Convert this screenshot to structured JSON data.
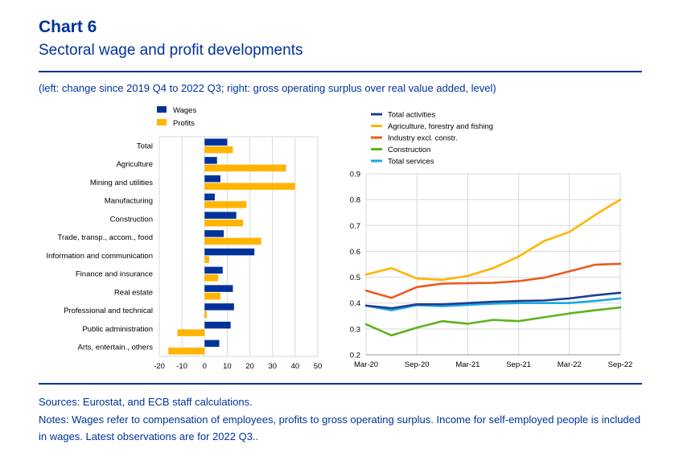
{
  "header": {
    "title": "Chart 6",
    "subtitle": "Sectoral wage and profit developments",
    "note": "(left: change since 2019 Q4 to 2022 Q3; right: gross operating surplus over real value added, level)"
  },
  "footer": {
    "sources": "Sources: Eurostat, and ECB staff calculations.",
    "notes": "Notes: Wages refer to compensation of employees, profits to gross operating surplus. Income for self-employed people is included in wages. Latest observations are for 2022 Q3.."
  },
  "colors": {
    "brand": "#003399",
    "wages": "#003399",
    "profits": "#FFB400",
    "total_activities": "#1F3F8F",
    "agriculture": "#FFB400",
    "industry": "#EC5A1F",
    "construction": "#5DB31F",
    "total_services": "#1CA8E0"
  },
  "chart_data": [
    {
      "type": "bar",
      "orientation": "horizontal",
      "categories": [
        "Total",
        "Agriculture",
        "Mining and utilities",
        "Manufacturing",
        "Construction",
        "Trade, transp., accom., food",
        "Information and communication",
        "Finance and insurance",
        "Real estate",
        "Professional and technical",
        "Public administration",
        "Arts, entertain., others"
      ],
      "series": [
        {
          "name": "Wages",
          "values": [
            10,
            5.5,
            7,
            4.5,
            14,
            8.5,
            22,
            8,
            12.5,
            13,
            11.5,
            6.5
          ]
        },
        {
          "name": "Profits",
          "values": [
            12.5,
            36,
            40,
            18.5,
            17,
            25,
            2,
            6,
            7,
            1,
            -12,
            -16
          ]
        }
      ],
      "xlim": [
        -20,
        50
      ],
      "xticks": [
        -20,
        -10,
        0,
        10,
        20,
        30,
        40,
        50
      ],
      "legend": "top-left",
      "grid": true
    },
    {
      "type": "line",
      "x": [
        "Mar-20",
        "Jun-20",
        "Sep-20",
        "Dec-20",
        "Mar-21",
        "Jun-21",
        "Sep-21",
        "Dec-21",
        "Mar-22",
        "Jun-22",
        "Sep-22"
      ],
      "xticks": [
        "Mar-20",
        "Sep-20",
        "Mar-21",
        "Sep-21",
        "Mar-22",
        "Sep-22"
      ],
      "series": [
        {
          "name": "Total activities",
          "values": [
            0.39,
            0.38,
            0.395,
            0.395,
            0.4,
            0.405,
            0.408,
            0.41,
            0.418,
            0.43,
            0.44
          ]
        },
        {
          "name": "Agriculture, forestry and fishing",
          "values": [
            0.51,
            0.535,
            0.495,
            0.49,
            0.505,
            0.535,
            0.58,
            0.64,
            0.675,
            0.74,
            0.8
          ]
        },
        {
          "name": "Industry excl. constr.",
          "values": [
            0.448,
            0.42,
            0.462,
            0.475,
            0.477,
            0.478,
            0.485,
            0.498,
            0.523,
            0.548,
            0.552
          ]
        },
        {
          "name": "Construction",
          "values": [
            0.318,
            0.275,
            0.305,
            0.33,
            0.32,
            0.335,
            0.33,
            0.345,
            0.36,
            0.372,
            0.383
          ]
        },
        {
          "name": "Total services",
          "values": [
            0.39,
            0.372,
            0.392,
            0.388,
            0.393,
            0.398,
            0.4,
            0.4,
            0.4,
            0.408,
            0.418
          ]
        }
      ],
      "ylim": [
        0.2,
        0.9
      ],
      "yticks": [
        0.2,
        0.3,
        0.4,
        0.5,
        0.6,
        0.7,
        0.8,
        0.9
      ],
      "legend": "top-left",
      "grid": true
    }
  ]
}
